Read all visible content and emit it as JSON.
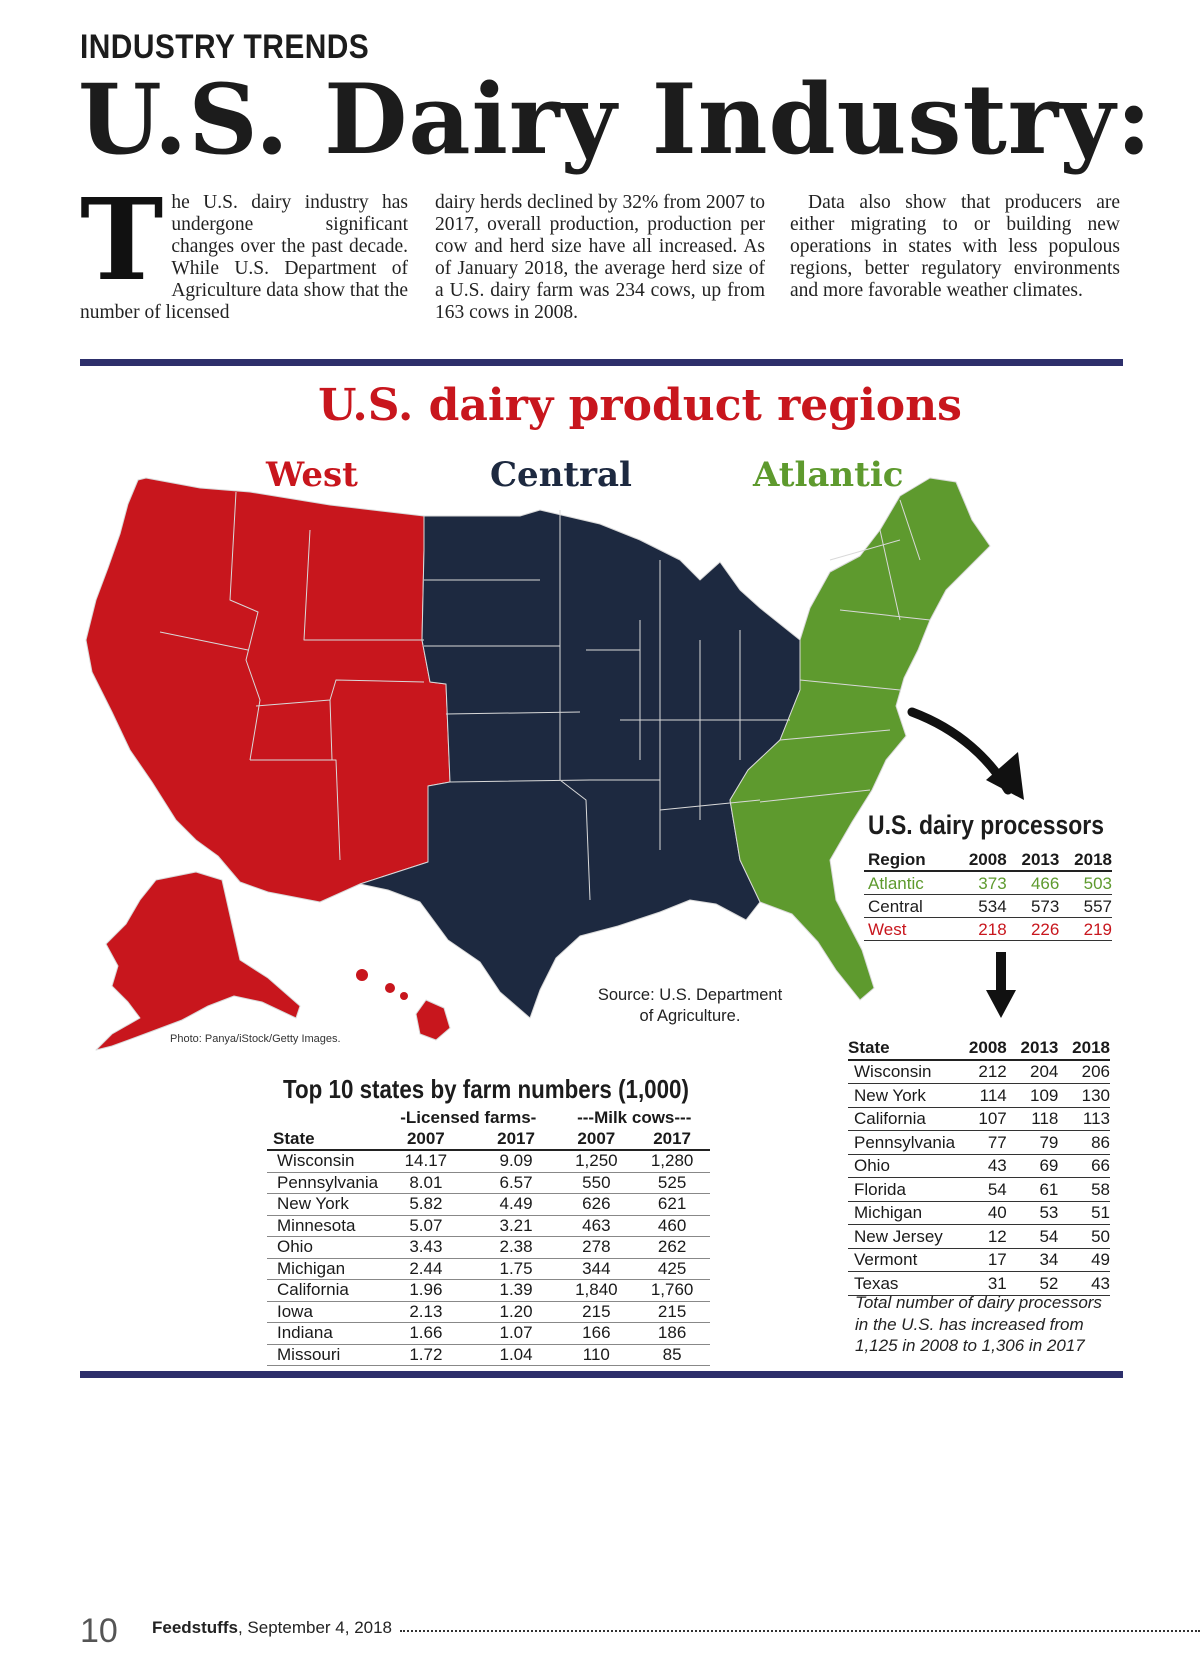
{
  "header": {
    "kicker": "INDUSTRY TRENDS",
    "headline": "U.S. Dairy Industry:"
  },
  "article": {
    "dropcap": "T",
    "col1": "he U.S. dairy industry has undergone significant changes over the past decade. While U.S. Department of Agriculture data show that the number of licensed",
    "col2": "dairy herds declined by 32% from 2007 to 2017, overall production, production per cow and herd size have all increased. As of January 2018, the average herd size of a U.S. dairy farm was 234 cows, up from 163 cows in 2008.",
    "col3": "Data also show that producers are either migrating to or building new operations in states with less populous regions, better regulatory environments and more favorable weather climates."
  },
  "map": {
    "title": "U.S. dairy product regions",
    "regions": [
      {
        "label": "West",
        "color": "#c8161d"
      },
      {
        "label": "Central",
        "color": "#1d2940"
      },
      {
        "label": "Atlantic",
        "color": "#5e9a2e"
      }
    ],
    "source_line1": "Source: U.S. Department",
    "source_line2": "of Agriculture.",
    "photo_credit": "Photo: Panya/iStock/Getty Images."
  },
  "processors": {
    "title": "U.S. dairy processors",
    "headers": [
      "Region",
      "2008",
      "2013",
      "2018"
    ],
    "rows": [
      {
        "region": "Atlantic",
        "v2008": "373",
        "v2013": "466",
        "v2018": "503",
        "color": "#5e9a2e"
      },
      {
        "region": "Central",
        "v2008": "534",
        "v2013": "573",
        "v2018": "557",
        "color": "#1c1c1c"
      },
      {
        "region": "West",
        "v2008": "218",
        "v2013": "226",
        "v2018": "219",
        "color": "#c8161d"
      }
    ],
    "state_headers": [
      "State",
      "2008",
      "2013",
      "2018"
    ],
    "states": [
      [
        "Wisconsin",
        "212",
        "204",
        "206"
      ],
      [
        "New York",
        "114",
        "109",
        "130"
      ],
      [
        "California",
        "107",
        "118",
        "113"
      ],
      [
        "Pennsylvania",
        "77",
        "79",
        "86"
      ],
      [
        "Ohio",
        "43",
        "69",
        "66"
      ],
      [
        "Florida",
        "54",
        "61",
        "58"
      ],
      [
        "Michigan",
        "40",
        "53",
        "51"
      ],
      [
        "New Jersey",
        "12",
        "54",
        "50"
      ],
      [
        "Vermont",
        "17",
        "34",
        "49"
      ],
      [
        "Texas",
        "31",
        "52",
        "43"
      ]
    ],
    "note": "Total number of dairy processors in the U.S. has increased from 1,125 in 2008 to 1,306 in 2017"
  },
  "top10": {
    "title": "Top 10 states by farm numbers (1,000)",
    "group1": "-Licensed farms-",
    "group2": "---Milk cows---",
    "headers": [
      "State",
      "2007",
      "2017",
      "2007",
      "2017"
    ],
    "rows": [
      [
        "Wisconsin",
        "14.17",
        "9.09",
        "1,250",
        "1,280"
      ],
      [
        "Pennsylvania",
        "8.01",
        "6.57",
        "550",
        "525"
      ],
      [
        "New York",
        "5.82",
        "4.49",
        "626",
        "621"
      ],
      [
        "Minnesota",
        "5.07",
        "3.21",
        "463",
        "460"
      ],
      [
        "Ohio",
        "3.43",
        "2.38",
        "278",
        "262"
      ],
      [
        "Michigan",
        "2.44",
        "1.75",
        "344",
        "425"
      ],
      [
        "California",
        "1.96",
        "1.39",
        "1,840",
        "1,760"
      ],
      [
        "Iowa",
        "2.13",
        "1.20",
        "215",
        "215"
      ],
      [
        "Indiana",
        "1.66",
        "1.07",
        "166",
        "186"
      ],
      [
        "Missouri",
        "1.72",
        "1.04",
        "110",
        "85"
      ]
    ]
  },
  "footer": {
    "page_number": "10",
    "publication": "Feedstuffs",
    "date": ", September 4, 2018"
  }
}
